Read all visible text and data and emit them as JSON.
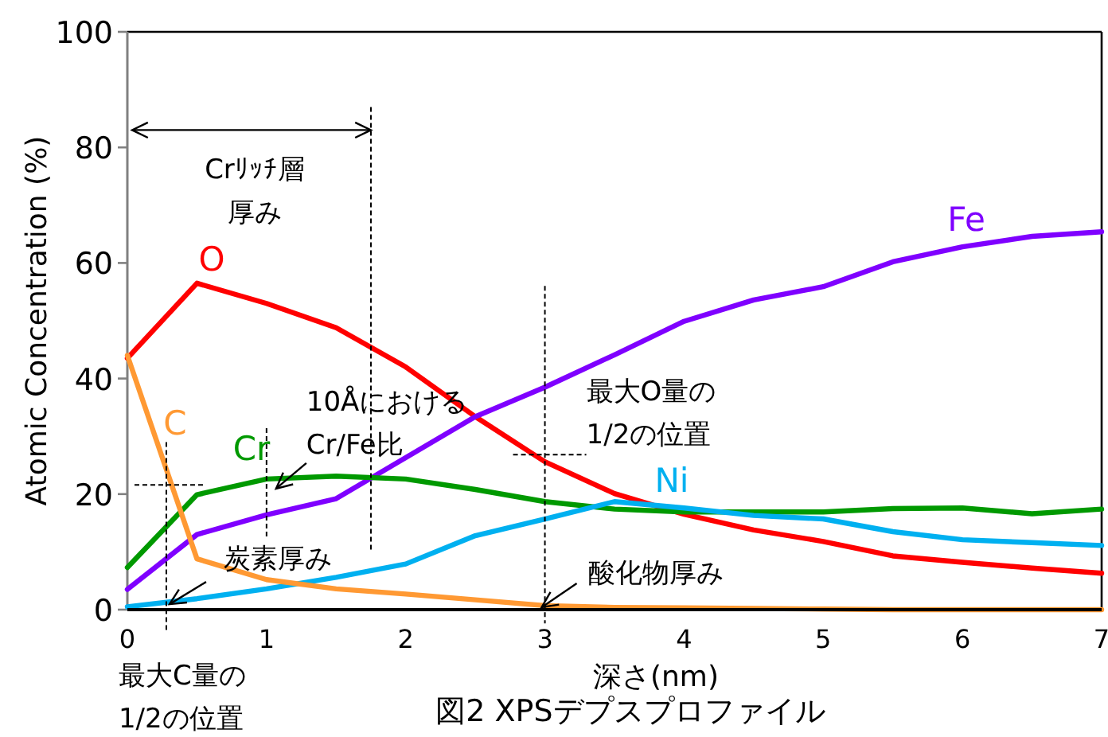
{
  "chart_data": {
    "type": "line",
    "title": "図2  XPSデプスプロファイル",
    "xlabel": "深さ(nm)",
    "ylabel": "Atomic Concentration (%)",
    "x": [
      0,
      0.5,
      1,
      1.5,
      2,
      2.5,
      3,
      3.5,
      4,
      4.5,
      5,
      5.5,
      6,
      6.5,
      7
    ],
    "xlim": [
      0,
      7
    ],
    "xticks": [
      0,
      1,
      2,
      3,
      4,
      5,
      6,
      7
    ],
    "ylim": [
      0,
      100
    ],
    "yticks": [
      0,
      20,
      40,
      60,
      80,
      100
    ],
    "grid": false,
    "legend": false,
    "marker": "none",
    "line_style": "solid",
    "series": [
      {
        "name": "O",
        "color": "#ff0000",
        "values": [
          43.5,
          56.5,
          53,
          48.8,
          42,
          33.4,
          25.6,
          20.1,
          16.5,
          13.8,
          11.8,
          9.3,
          8.2,
          7.2,
          6.3
        ]
      },
      {
        "name": "Fe",
        "color": "#7f00ff",
        "values": [
          3.5,
          13,
          16.4,
          19.2,
          26.3,
          33.4,
          38.5,
          44.1,
          49.9,
          53.6,
          55.9,
          60.2,
          62.8,
          64.6,
          65.4
        ]
      },
      {
        "name": "Cr",
        "color": "#009900",
        "values": [
          7.3,
          19.9,
          22.6,
          23.1,
          22.6,
          20.8,
          18.7,
          17.4,
          16.9,
          16.9,
          16.9,
          17.5,
          17.6,
          16.6,
          17.4
        ]
      },
      {
        "name": "Ni",
        "color": "#00b0f0",
        "values": [
          0.5,
          1.9,
          3.6,
          5.6,
          7.9,
          12.8,
          15.7,
          18.7,
          17.6,
          16.3,
          15.7,
          13.5,
          12.1,
          11.6,
          11.1
        ]
      },
      {
        "name": "C",
        "color": "#ff9933",
        "values": [
          44,
          8.8,
          5.2,
          3.6,
          2.7,
          1.7,
          0.7,
          0.4,
          0.3,
          0.2,
          0.1,
          0,
          0,
          0,
          0
        ]
      }
    ],
    "ref_lines": [
      {
        "axis": "x",
        "value": 1.75,
        "label": "Crﾘｯﾁ層厚み",
        "line_style": "dashed"
      },
      {
        "axis": "x",
        "value": 0.28,
        "label": "最大C量の1/2の位置",
        "line_style": "dashed"
      }
    ],
    "annotations": [
      {
        "text": "10ÅにおけるCr/Fe比",
        "x": 1,
        "y": 22.6
      },
      {
        "text": "最大O量の1/2の位置",
        "x": 3,
        "y": 26
      },
      {
        "text": "酸化物厚み",
        "x": 3,
        "y": 0.7
      },
      {
        "text": "炭素厚み",
        "x": 0.28,
        "y": 1.5
      }
    ]
  }
}
